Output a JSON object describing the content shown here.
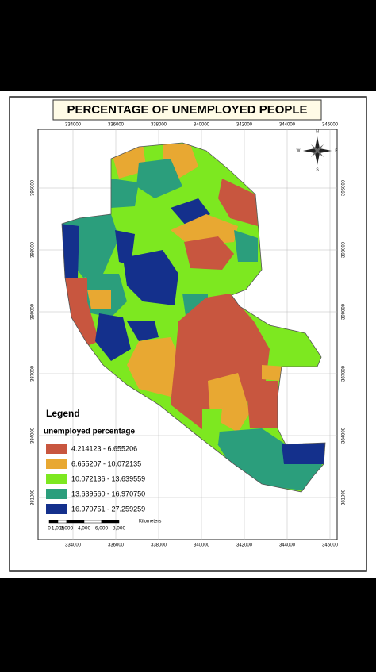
{
  "title": "PERCENTAGE OF UNEMPLOYED PEOPLE",
  "map": {
    "x_labels": [
      "334000",
      "336000",
      "338000",
      "340000",
      "342000",
      "344000",
      "346000"
    ],
    "y_labels": [
      "396000",
      "393000",
      "390000",
      "387000",
      "384000",
      "381000"
    ],
    "compass": [
      "N",
      "S",
      "E",
      "W"
    ]
  },
  "legend": {
    "title": "Legend",
    "subtitle": "unemployed percentage",
    "classes": [
      {
        "label": "4.214123 - 6.655206",
        "color": "#c8563f"
      },
      {
        "label": "6.655207 - 10.072135",
        "color": "#e8a832"
      },
      {
        "label": "10.072136 - 13.639559",
        "color": "#7de820"
      },
      {
        "label": "13.639560 - 16.970750",
        "color": "#2b9e7c"
      },
      {
        "label": "16.970751 - 27.259259",
        "color": "#14308c"
      }
    ]
  },
  "scale_bar": {
    "labels": [
      "0",
      "1,000",
      "2,000",
      "4,000",
      "6,000",
      "8,000"
    ],
    "unit": "Kilometers"
  }
}
